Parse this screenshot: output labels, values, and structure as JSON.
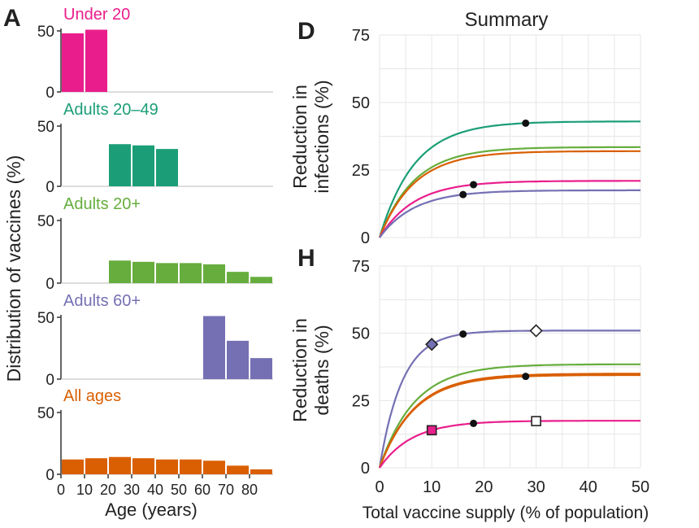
{
  "panel_letters": {
    "a": "A",
    "d": "D",
    "h": "H"
  },
  "left": {
    "ylabel": "Distribution of vaccines (%)",
    "xlabel": "Age (years)",
    "xticks": [
      "0",
      "10",
      "20",
      "30",
      "40",
      "50",
      "60",
      "70",
      "80"
    ],
    "yticks": [
      "0",
      "50"
    ]
  },
  "right": {
    "title": "Summary",
    "xlabel": "Total vaccine supply (% of population)",
    "xticks": [
      "0",
      "10",
      "20",
      "30",
      "40",
      "50"
    ],
    "yticks": [
      "0",
      "25",
      "50",
      "75"
    ],
    "ylabel_d": [
      "Reduction in",
      "infections (%)"
    ],
    "ylabel_h": [
      "Reduction in",
      "deaths (%)"
    ]
  },
  "chart_data": [
    {
      "type": "bar",
      "panel": "A",
      "categories": [
        "0-9",
        "10-19",
        "20-29",
        "30-39",
        "40-49",
        "50-59",
        "60-69",
        "70-79",
        "80+"
      ],
      "ylim": [
        0,
        55
      ],
      "series": [
        {
          "name": "Under 20",
          "color": "#e91e8c",
          "values": [
            48,
            51,
            0,
            0,
            0,
            0,
            0,
            0,
            0
          ]
        },
        {
          "name": "Adults 20–49",
          "color": "#1b9e77",
          "values": [
            0,
            0,
            35,
            34,
            31,
            0,
            0,
            0,
            0
          ]
        },
        {
          "name": "Adults 20+",
          "color": "#66ad3d",
          "values": [
            0,
            0,
            18,
            17,
            16,
            16,
            15,
            9,
            5
          ]
        },
        {
          "name": "Adults 60+",
          "color": "#7570b3",
          "values": [
            0,
            0,
            0,
            0,
            0,
            0,
            51,
            31,
            17
          ]
        },
        {
          "name": "All ages",
          "color": "#d95f02",
          "values": [
            12,
            13,
            14,
            13,
            12,
            12,
            11,
            7,
            4
          ]
        }
      ]
    },
    {
      "type": "line",
      "panel": "D",
      "title": "Summary",
      "xlabel": "Total vaccine supply (% of population)",
      "ylabel": "Reduction in infections (%)",
      "xlim": [
        0,
        50
      ],
      "ylim": [
        0,
        75
      ],
      "grid": true,
      "series": [
        {
          "color": "#1b9e77",
          "plateau": 43,
          "k": 0.15,
          "dot": 28
        },
        {
          "color": "#66ad3d",
          "plateau": 33.5,
          "k": 0.15
        },
        {
          "color": "#d95f02",
          "plateau": 32,
          "k": 0.15
        },
        {
          "color": "#e91e8c",
          "plateau": 21,
          "k": 0.15,
          "dot": 18
        },
        {
          "color": "#7570b3",
          "plateau": 17.5,
          "k": 0.15,
          "dot": 16
        }
      ]
    },
    {
      "type": "line",
      "panel": "H",
      "xlabel": "Total vaccine supply (% of population)",
      "ylabel": "Reduction in deaths (%)",
      "xlim": [
        0,
        50
      ],
      "ylim": [
        0,
        75
      ],
      "grid": true,
      "series": [
        {
          "color": "#7570b3",
          "plateau": 51,
          "k": 0.23,
          "dot": 16,
          "marker": "diamond",
          "filled_marker_x": 10,
          "open_marker_x": 30
        },
        {
          "color": "#66ad3d",
          "plateau": 38.5,
          "k": 0.15
        },
        {
          "color": "#d95f02",
          "plateau": 35,
          "k": 0.15
        },
        {
          "color": "#d95f02",
          "plateau": 34.5,
          "k": 0.15,
          "dot": 28
        },
        {
          "color": "#e91e8c",
          "plateau": 17.5,
          "k": 0.16,
          "dot": 18,
          "marker": "square",
          "filled_marker_x": 10,
          "open_marker_x": 30
        }
      ]
    }
  ]
}
